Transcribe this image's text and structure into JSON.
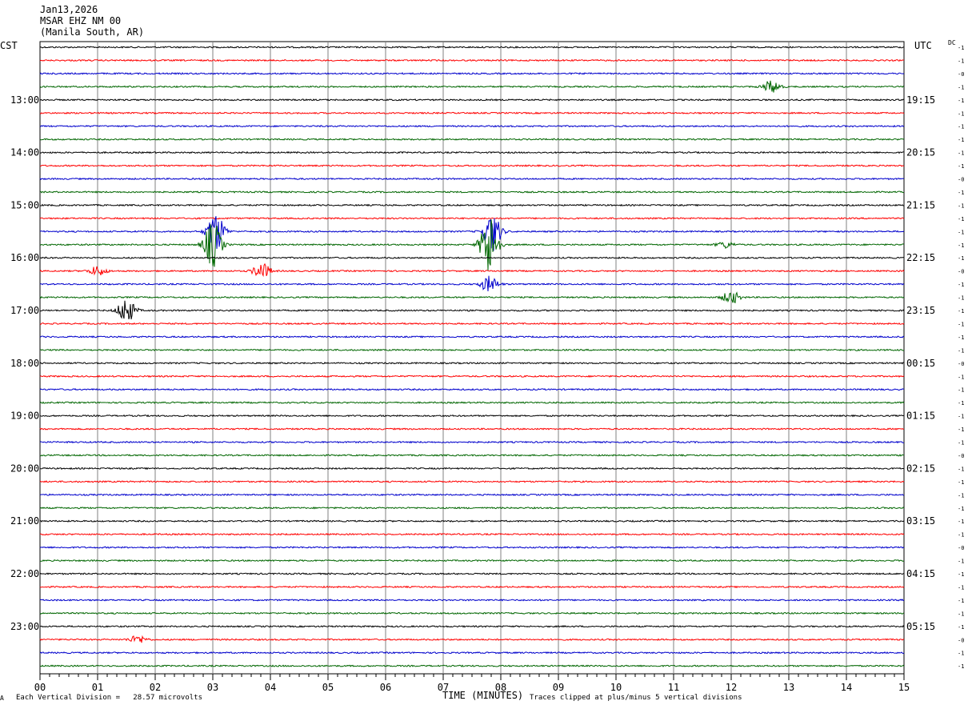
{
  "header": {
    "date": "Jan13,2026",
    "station": "MSAR EHZ NM 00",
    "location": "(Manila South, AR)"
  },
  "left_tz": "CST",
  "right_tz": "UTC",
  "dc_label": "DC",
  "footer": {
    "vertical_division": "Each Vertical Division =   28.57 microvolts",
    "clip_note": "Traces clipped at plus/minus 5 vertical divisions",
    "corner_mark": "A"
  },
  "colors": {
    "black": "#000000",
    "red": "#ff0000",
    "blue": "#0000cc",
    "green": "#006600",
    "grid": "#808080"
  },
  "chart_data": {
    "type": "line",
    "xlabel": "TIME (MINUTES)",
    "xlim": [
      0,
      15
    ],
    "x_ticks": [
      "00",
      "01",
      "02",
      "03",
      "04",
      "05",
      "06",
      "07",
      "08",
      "09",
      "10",
      "11",
      "12",
      "13",
      "14",
      "15"
    ],
    "trace_colors": [
      "black",
      "red",
      "blue",
      "green"
    ],
    "left_hour_labels": [
      "13:00",
      "14:00",
      "15:00",
      "16:00",
      "17:00",
      "18:00",
      "19:00",
      "20:00",
      "21:00",
      "22:00",
      "23:00"
    ],
    "right_hour_labels": [
      "19:15",
      "20:15",
      "21:15",
      "22:15",
      "23:15",
      "00:15",
      "01:15",
      "02:15",
      "03:15",
      "04:15",
      "05:15"
    ],
    "dc_offsets": [
      "-1",
      "-1",
      "-0",
      "-1",
      "-1",
      "-1",
      "-1",
      "-1",
      "-1",
      "-1",
      "-0",
      "-1",
      "-1",
      "-1",
      "-1",
      "-1",
      "-1",
      "-0",
      "-1",
      "-1",
      "-1",
      "-1",
      "-1",
      "-1",
      "-0",
      "-1",
      "-1",
      "-1",
      "-1",
      "-1",
      "-1",
      "-0",
      "-1",
      "-1",
      "-1",
      "-1",
      "-1",
      "-1",
      "-0",
      "-1",
      "-1",
      "-1",
      "-1",
      "-1",
      "-1",
      "-0",
      "-1",
      "-1"
    ],
    "events": [
      {
        "trace": 3,
        "minute": 12.7,
        "amplitude": 0.8
      },
      {
        "trace": 14,
        "minute": 3.05,
        "amplitude": 2.5
      },
      {
        "trace": 14,
        "minute": 7.85,
        "amplitude": 2.5
      },
      {
        "trace": 15,
        "minute": 3.0,
        "amplitude": 3.0
      },
      {
        "trace": 15,
        "minute": 7.8,
        "amplitude": 4.0
      },
      {
        "trace": 15,
        "minute": 11.9,
        "amplitude": 0.4
      },
      {
        "trace": 17,
        "minute": 1.0,
        "amplitude": 0.6
      },
      {
        "trace": 17,
        "minute": 3.85,
        "amplitude": 1.0
      },
      {
        "trace": 18,
        "minute": 7.8,
        "amplitude": 1.0
      },
      {
        "trace": 19,
        "minute": 12.0,
        "amplitude": 0.8
      },
      {
        "trace": 20,
        "minute": 1.5,
        "amplitude": 1.6
      },
      {
        "trace": 45,
        "minute": 1.7,
        "amplitude": 0.5
      }
    ]
  }
}
